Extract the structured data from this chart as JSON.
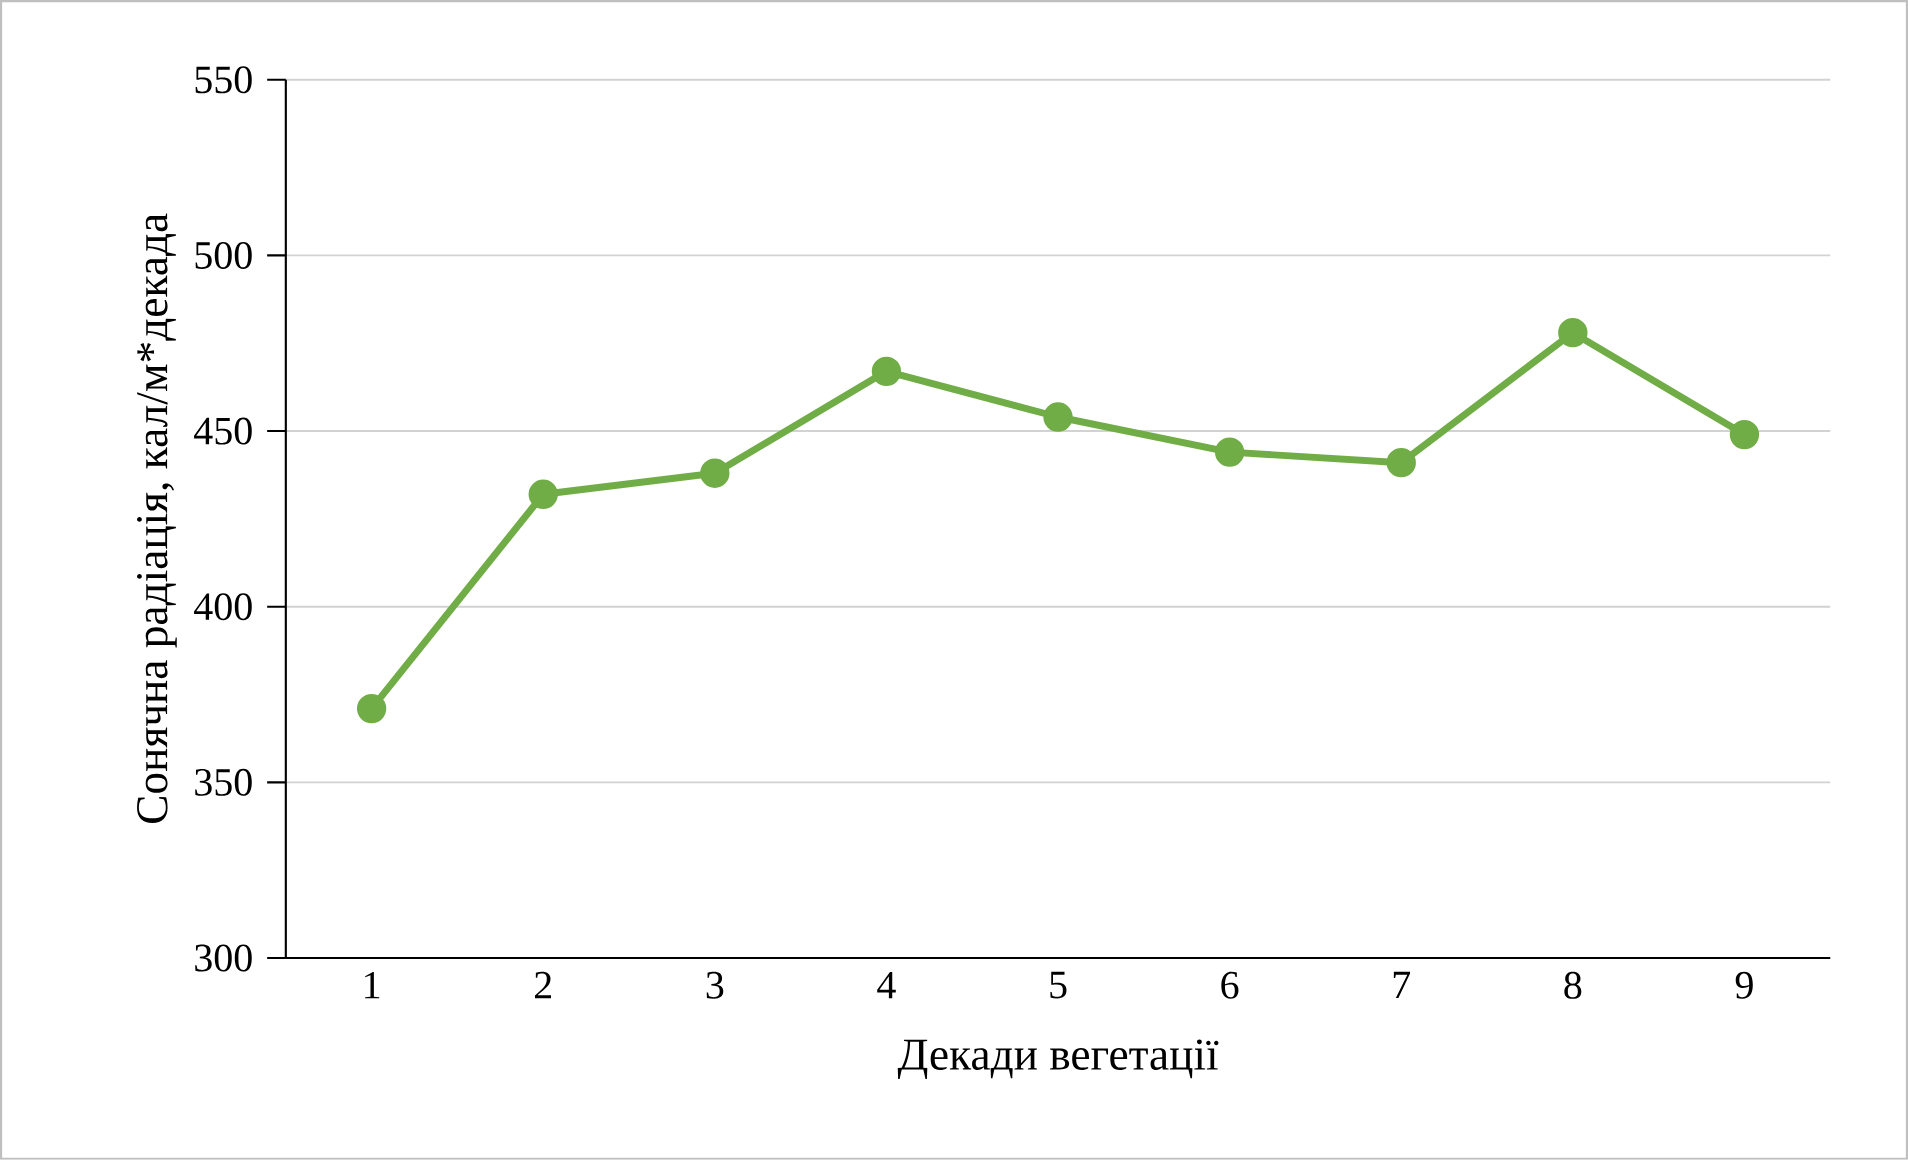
{
  "chart_data": {
    "type": "line",
    "xlabel": "Декади вегетації",
    "ylabel": "Сонячна радіація, кал/м*декада",
    "categories": [
      "1",
      "2",
      "3",
      "4",
      "5",
      "6",
      "7",
      "8",
      "9"
    ],
    "values": [
      371,
      432,
      438,
      467,
      454,
      444,
      441,
      478,
      449
    ],
    "color": "#70ad47",
    "marker": "circle",
    "ylim": [
      300,
      550
    ],
    "yticks": [
      300,
      350,
      400,
      450,
      500,
      550
    ],
    "grid": "y"
  }
}
